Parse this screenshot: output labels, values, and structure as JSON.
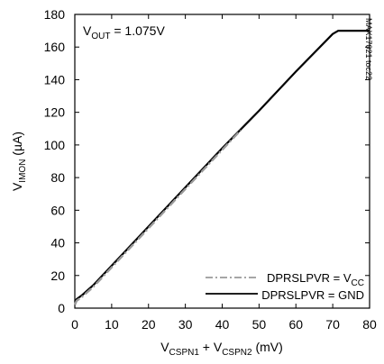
{
  "chart_data": {
    "type": "line",
    "xlabel": {
      "base1": "V",
      "sub1": "CSPN1",
      "mid": " + V",
      "sub2": "CSPN2",
      "unit": " (mV)"
    },
    "ylabel": {
      "base": "V",
      "sub": "IMON",
      "unit": " (µA)"
    },
    "xlim": [
      0,
      80
    ],
    "ylim": [
      0,
      180
    ],
    "xticks": [
      0,
      10,
      20,
      30,
      40,
      50,
      60,
      70,
      80
    ],
    "yticks": [
      0,
      20,
      40,
      60,
      80,
      100,
      120,
      140,
      160,
      180
    ],
    "grid": false,
    "legend_position": "bottom-right",
    "annotation": {
      "base": "V",
      "sub": "OUT",
      "rest": " = 1.075V"
    },
    "figure_id": "MAX17021 toc22",
    "series": [
      {
        "name": {
          "base": "DPRSLPVR = V",
          "sub": "CC"
        },
        "style": "dash-dot",
        "color": "#9a9a9a",
        "x": [
          0,
          0.5,
          2,
          5,
          10,
          20,
          30,
          40,
          45
        ],
        "y": [
          2,
          4.5,
          7,
          13,
          25,
          49,
          73,
          97,
          109
        ]
      },
      {
        "name": {
          "base": "DPRSLPVR = GND"
        },
        "style": "solid",
        "color": "#000000",
        "x": [
          0,
          0.5,
          2,
          5,
          10,
          20,
          30,
          40,
          50,
          60,
          70,
          71.5,
          80
        ],
        "y": [
          4,
          5.5,
          8,
          14,
          26,
          50,
          74,
          98,
          121,
          145,
          168,
          170,
          170
        ]
      }
    ]
  }
}
